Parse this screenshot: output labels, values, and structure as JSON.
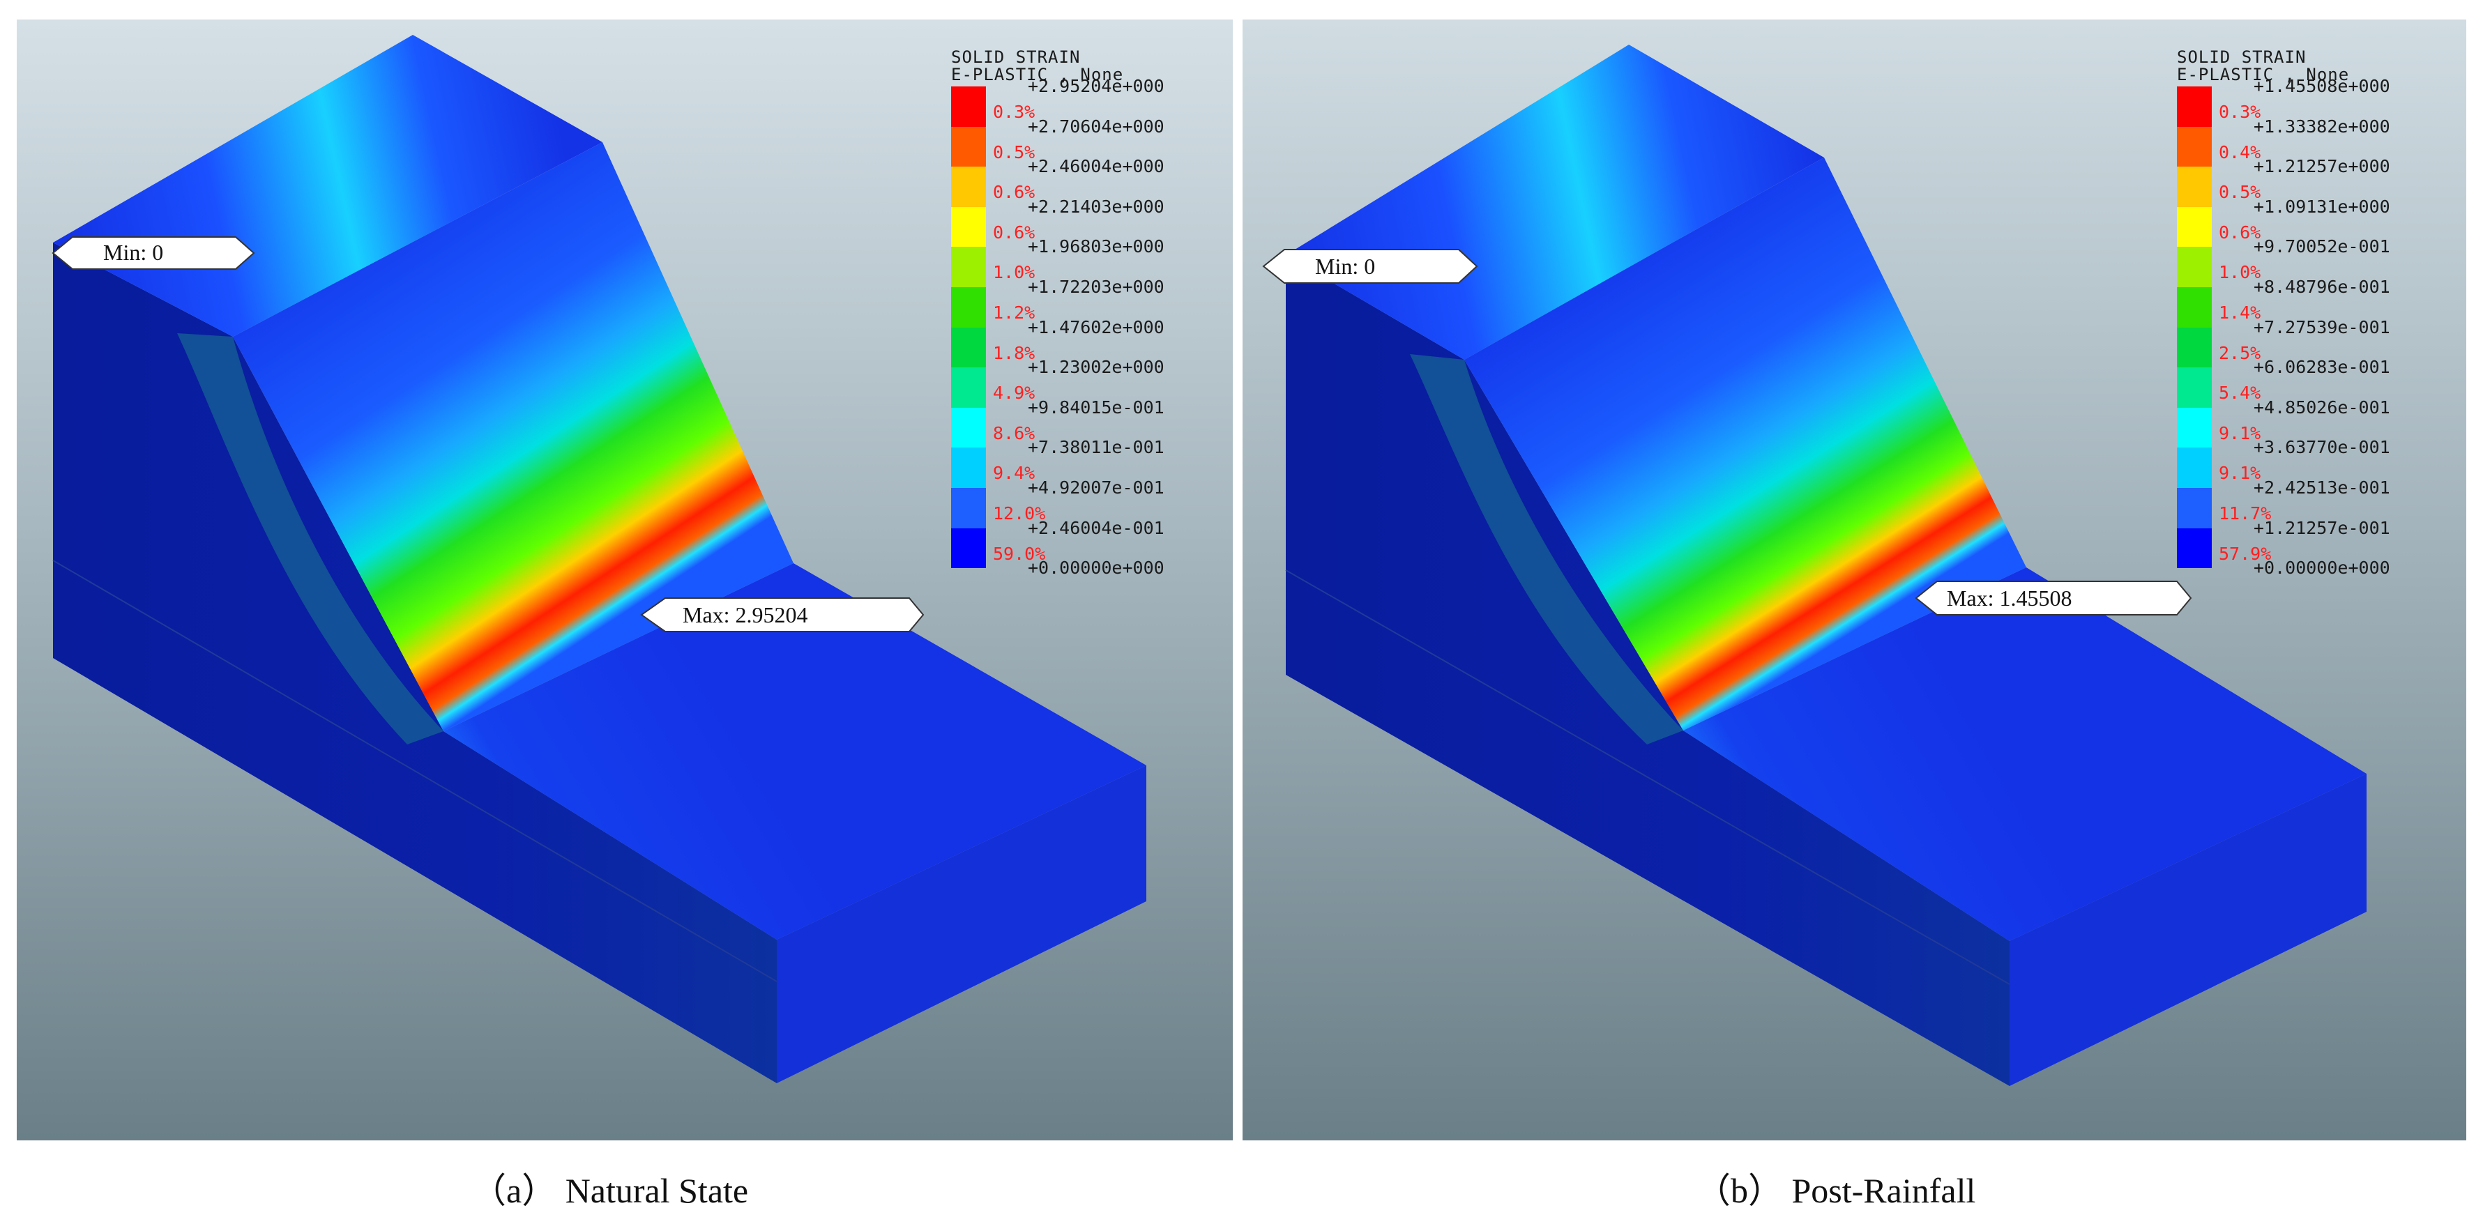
{
  "panels": [
    {
      "id": "a",
      "caption": "（a） Natural State",
      "legend": {
        "title_line1": "SOLID STRAIN",
        "title_line2": "E-PLASTIC , None",
        "values": [
          "+2.95204e+000",
          "+2.70604e+000",
          "+2.46004e+000",
          "+2.21403e+000",
          "+1.96803e+000",
          "+1.72203e+000",
          "+1.47602e+000",
          "+1.23002e+000",
          "+9.84015e-001",
          "+7.38011e-001",
          "+4.92007e-001",
          "+2.46004e-001",
          "+0.00000e+000"
        ],
        "percents": [
          "0.3%",
          "0.5%",
          "0.6%",
          "0.6%",
          "1.0%",
          "1.2%",
          "1.8%",
          "4.9%",
          "8.6%",
          "9.4%",
          "12.0%",
          "59.0%"
        ]
      },
      "min_label": "Min:  0",
      "max_label": "Max:  2.95204",
      "max_value": 2.95204
    },
    {
      "id": "b",
      "caption": "（b） Post-Rainfall",
      "legend": {
        "title_line1": "SOLID STRAIN",
        "title_line2": "E-PLASTIC , None",
        "values": [
          "+1.45508e+000",
          "+1.33382e+000",
          "+1.21257e+000",
          "+1.09131e+000",
          "+9.70052e-001",
          "+8.48796e-001",
          "+7.27539e-001",
          "+6.06283e-001",
          "+4.85026e-001",
          "+3.63770e-001",
          "+2.42513e-001",
          "+1.21257e-001",
          "+0.00000e+000"
        ],
        "percents": [
          "0.3%",
          "0.4%",
          "0.5%",
          "0.6%",
          "1.0%",
          "1.4%",
          "2.5%",
          "5.4%",
          "9.1%",
          "9.1%",
          "11.7%",
          "57.9%"
        ]
      },
      "min_label": "Min:  0",
      "max_label": "Max:  1.45508",
      "max_value": 1.45508
    }
  ],
  "colors": {
    "legend_swatches": [
      "#ff0000",
      "#ff5a00",
      "#ffc800",
      "#ffff00",
      "#9cf000",
      "#30e000",
      "#00d840",
      "#00e890",
      "#00ffff",
      "#00d0ff",
      "#1e60ff",
      "#0000ff"
    ],
    "background_top": "#d2dde3",
    "background_bottom": "#6d828b",
    "model_blue": "#1432e6",
    "model_side": "#08189a"
  }
}
